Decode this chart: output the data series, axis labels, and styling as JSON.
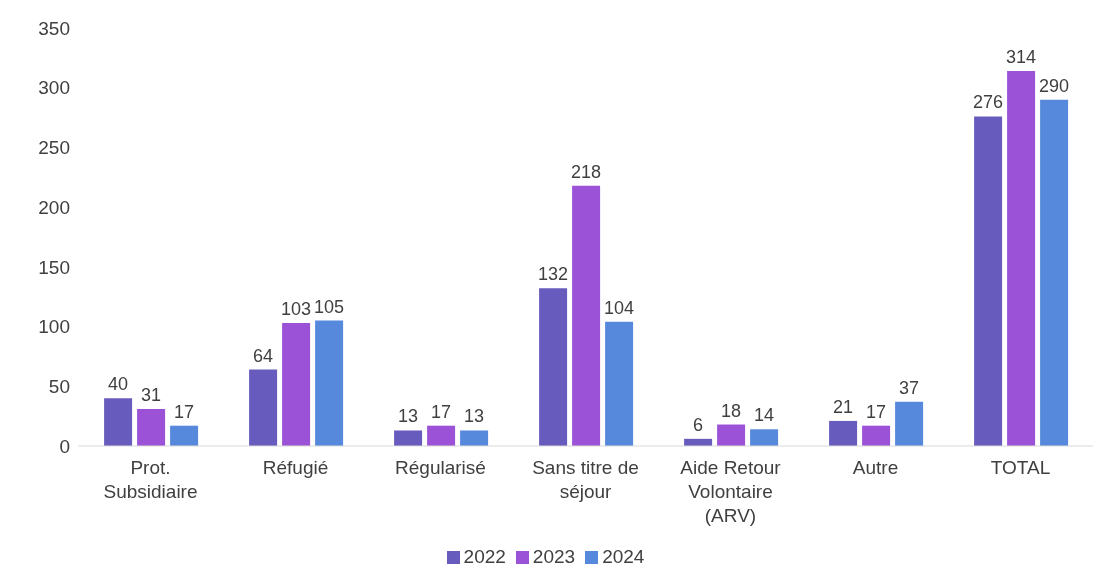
{
  "chart_data": {
    "type": "bar",
    "categories": [
      "Prot. Subsidiaire",
      "Réfugié",
      "Régularisé",
      "Sans titre de séjour",
      "Aide Retour Volontaire (ARV)",
      "Autre",
      "TOTAL"
    ],
    "series": [
      {
        "name": "2022",
        "color": "#675bbd",
        "values": [
          40,
          64,
          13,
          132,
          6,
          21,
          276
        ]
      },
      {
        "name": "2023",
        "color": "#9c52d6",
        "values": [
          31,
          103,
          17,
          218,
          18,
          17,
          314
        ]
      },
      {
        "name": "2024",
        "color": "#5689dc",
        "values": [
          17,
          105,
          13,
          104,
          14,
          37,
          290
        ]
      }
    ],
    "ylim": [
      0,
      350
    ],
    "yticks": [
      0,
      50,
      100,
      150,
      200,
      250,
      300,
      350
    ],
    "grid": false,
    "legend": "bottom",
    "data_labels": true
  }
}
